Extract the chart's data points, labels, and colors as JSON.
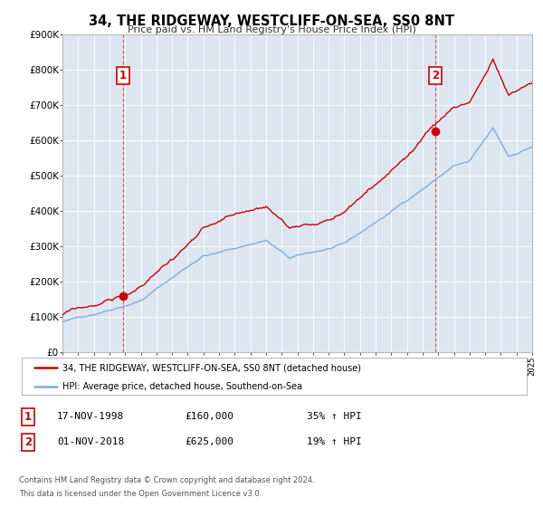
{
  "title": "34, THE RIDGEWAY, WESTCLIFF-ON-SEA, SS0 8NT",
  "subtitle": "Price paid vs. HM Land Registry's House Price Index (HPI)",
  "bg_color": "#ffffff",
  "plot_bg_color": "#dce6f0",
  "red_color": "#cc0000",
  "blue_color": "#7aaadd",
  "grid_color": "#ffffff",
  "sale1_date": 1998.88,
  "sale1_price": 160000,
  "sale2_date": 2018.83,
  "sale2_price": 625000,
  "legend_label_red": "34, THE RIDGEWAY, WESTCLIFF-ON-SEA, SS0 8NT (detached house)",
  "legend_label_blue": "HPI: Average price, detached house, Southend-on-Sea",
  "annotation1_date": "17-NOV-1998",
  "annotation1_price": "£160,000",
  "annotation1_hpi": "35% ↑ HPI",
  "annotation2_date": "01-NOV-2018",
  "annotation2_price": "£625,000",
  "annotation2_hpi": "19% ↑ HPI",
  "footer1": "Contains HM Land Registry data © Crown copyright and database right 2024.",
  "footer2": "This data is licensed under the Open Government Licence v3.0.",
  "xmin": 1995,
  "xmax": 2025,
  "ymin": 0,
  "ymax": 900000,
  "yticks": [
    0,
    100000,
    200000,
    300000,
    400000,
    500000,
    600000,
    700000,
    800000,
    900000
  ],
  "ytick_labels": [
    "£0",
    "£100K",
    "£200K",
    "£300K",
    "£400K",
    "£500K",
    "£600K",
    "£700K",
    "£800K",
    "£900K"
  ]
}
